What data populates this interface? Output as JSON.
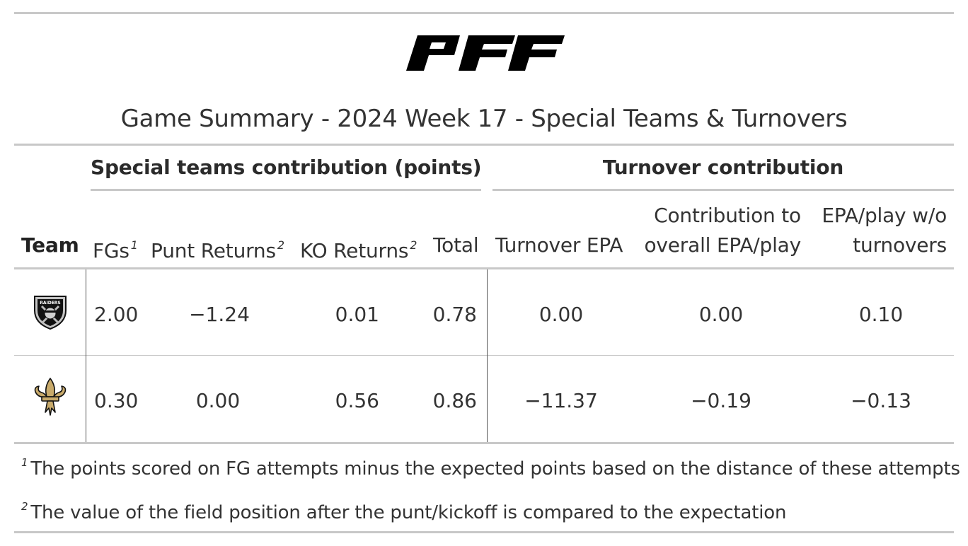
{
  "brand": {
    "logo_text": "PFF"
  },
  "title": "Game Summary - 2024 Week 17 - Special Teams & Turnovers",
  "spanners": {
    "special_teams": "Special teams contribution (points)",
    "turnover": "Turnover contribution"
  },
  "columns": {
    "team": "Team",
    "fgs": "FGs",
    "fgs_note": "1",
    "punt_returns": "Punt Returns",
    "punt_returns_note": "2",
    "ko_returns": "KO Returns",
    "ko_returns_note": "2",
    "total": "Total",
    "turnover_epa": "Turnover EPA",
    "contribution_line1": "Contribution to",
    "contribution_line2": "overall EPA/play",
    "epa_wo_line1": "EPA/play w/o",
    "epa_wo_line2": "turnovers"
  },
  "rows": [
    {
      "team_logo": "raiders-logo-icon",
      "logo_text": "RAIDERS",
      "fgs": "2.00",
      "punt_returns": "−1.24",
      "ko_returns": "0.01",
      "total": "0.78",
      "turnover_epa": "0.00",
      "contribution": "0.00",
      "epa_wo": "0.10"
    },
    {
      "team_logo": "saints-fleur-de-lis-icon",
      "fgs": "0.30",
      "punt_returns": "0.00",
      "ko_returns": "0.56",
      "total": "0.86",
      "turnover_epa": "−11.37",
      "contribution": "−0.19",
      "epa_wo": "−0.13"
    }
  ],
  "footnotes": [
    {
      "mark": "1",
      "text": "The points scored on FG attempts minus the expected points based on the distance of these attempts"
    },
    {
      "mark": "2",
      "text": "The value of the field position after the punt/kickoff is compared to the expectation"
    }
  ],
  "colors": {
    "rule": "#c8c8c8",
    "text": "#333333",
    "saints_gold": "#c8aa6b",
    "raiders_black": "#111111"
  }
}
